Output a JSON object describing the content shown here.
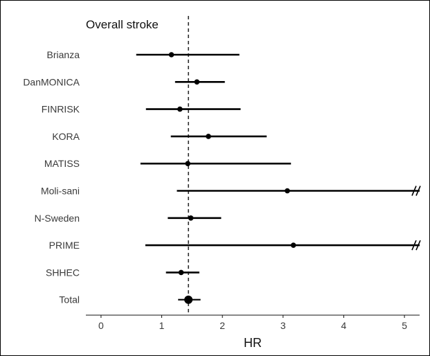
{
  "chart_data": {
    "type": "forest",
    "title": "Overall stroke",
    "xlabel": "HR",
    "xlim": [
      -0.25,
      5.25
    ],
    "xticks": [
      0,
      1,
      2,
      3,
      4,
      5
    ],
    "reference_line": 1.44,
    "grid": false,
    "rows": [
      {
        "label": "Brianza",
        "hr": 1.16,
        "lower": 0.58,
        "upper": 2.28,
        "truncated": false
      },
      {
        "label": "DanMONICA",
        "hr": 1.58,
        "lower": 1.22,
        "upper": 2.04,
        "truncated": false
      },
      {
        "label": "FINRISK",
        "hr": 1.3,
        "lower": 0.74,
        "upper": 2.3,
        "truncated": false
      },
      {
        "label": "KORA",
        "hr": 1.77,
        "lower": 1.15,
        "upper": 2.73,
        "truncated": false
      },
      {
        "label": "MATISS",
        "hr": 1.43,
        "lower": 0.65,
        "upper": 3.13,
        "truncated": false
      },
      {
        "label": "Moli-sani",
        "hr": 3.07,
        "lower": 1.25,
        "upper": 5.25,
        "truncated": true
      },
      {
        "label": "N-Sweden",
        "hr": 1.48,
        "lower": 1.1,
        "upper": 1.98,
        "truncated": false
      },
      {
        "label": "PRIME",
        "hr": 3.17,
        "lower": 0.73,
        "upper": 5.25,
        "truncated": true
      },
      {
        "label": "SHHEC",
        "hr": 1.32,
        "lower": 1.07,
        "upper": 1.62,
        "truncated": false
      },
      {
        "label": "Total",
        "hr": 1.44,
        "lower": 1.27,
        "upper": 1.64,
        "truncated": false,
        "summary": true
      }
    ]
  }
}
